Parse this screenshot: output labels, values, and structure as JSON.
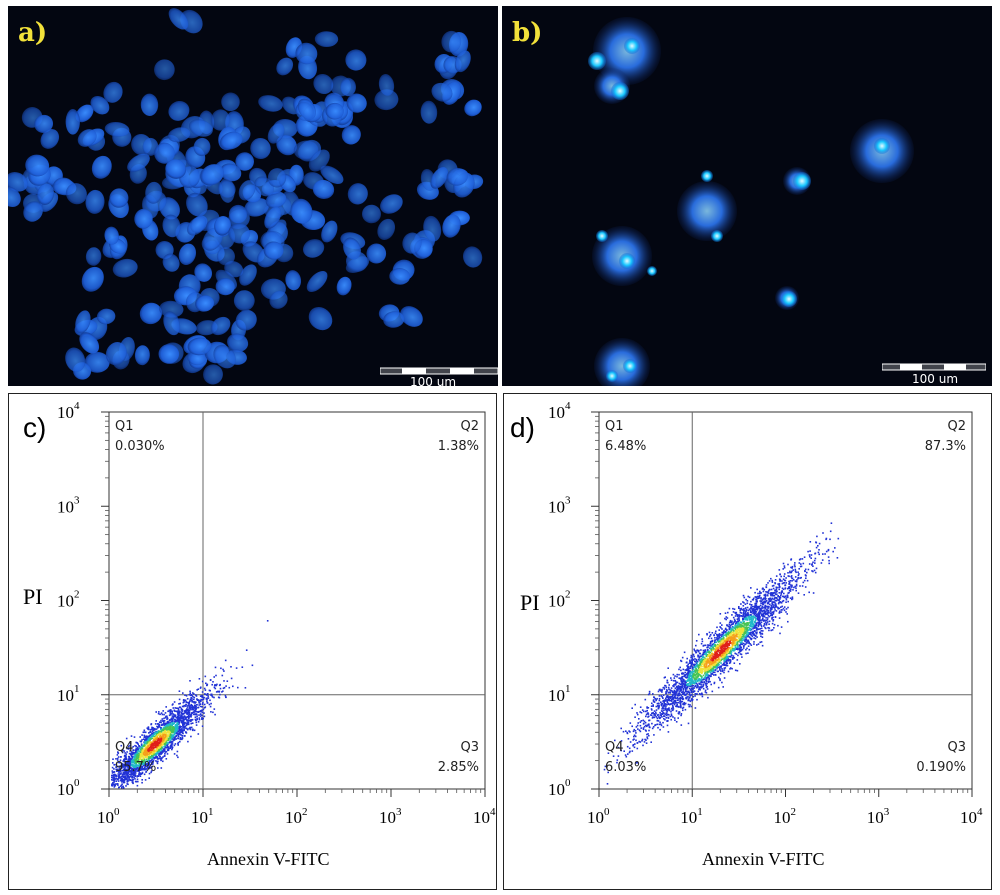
{
  "figure": {
    "panel_a": {
      "label": "a)",
      "scale_bar": "100 um"
    },
    "panel_b": {
      "label": "b)",
      "scale_bar": "100 um"
    },
    "panel_c": {
      "label": "c)",
      "ylabel": "PI",
      "xlabel": "Annexin V-FITC",
      "quadrants": [
        {
          "name": "Q1",
          "value": "0.030%"
        },
        {
          "name": "Q2",
          "value": "1.38%"
        },
        {
          "name": "Q3",
          "value": "2.85%"
        },
        {
          "name": "Q4",
          "value": "95.7%"
        }
      ]
    },
    "panel_d": {
      "label": "d)",
      "ylabel": "PI",
      "xlabel": "Annexin V-FITC",
      "quadrants": [
        {
          "name": "Q1",
          "value": "6.48%"
        },
        {
          "name": "Q2",
          "value": "87.3%"
        },
        {
          "name": "Q3",
          "value": "0.190%"
        },
        {
          "name": "Q4",
          "value": "6.03%"
        }
      ]
    }
  },
  "chart_data": [
    {
      "type": "scatter",
      "panel": "c)",
      "xlabel": "Annexin V-FITC",
      "ylabel": "PI",
      "x_scale": "log",
      "y_scale": "log",
      "xlim": [
        1,
        10000
      ],
      "ylim": [
        1,
        10000
      ],
      "x_ticks": [
        "10^0",
        "10^1",
        "10^2",
        "10^3",
        "10^4"
      ],
      "y_ticks": [
        "10^0",
        "10^1",
        "10^2",
        "10^3",
        "10^4"
      ],
      "gate": {
        "x": 10,
        "y": 10
      },
      "quadrants": {
        "Q1": "0.030%",
        "Q2": "1.38%",
        "Q3": "2.85%",
        "Q4": "95.7%"
      },
      "cluster": {
        "center": [
          3,
          3
        ],
        "extent_x": [
          1,
          40
        ],
        "extent_y": [
          1,
          40
        ]
      }
    },
    {
      "type": "scatter",
      "panel": "d)",
      "xlabel": "Annexin V-FITC",
      "ylabel": "PI",
      "x_scale": "log",
      "y_scale": "log",
      "xlim": [
        1,
        10000
      ],
      "ylim": [
        1,
        10000
      ],
      "x_ticks": [
        "10^0",
        "10^1",
        "10^2",
        "10^3",
        "10^4"
      ],
      "y_ticks": [
        "10^0",
        "10^1",
        "10^2",
        "10^3",
        "10^4"
      ],
      "gate": {
        "x": 10,
        "y": 10
      },
      "quadrants": {
        "Q1": "6.48%",
        "Q2": "87.3%",
        "Q3": "0.190%",
        "Q4": "6.03%"
      },
      "cluster": {
        "center": [
          20,
          30
        ],
        "extent_x": [
          4,
          600
        ],
        "extent_y": [
          3,
          700
        ]
      }
    }
  ]
}
